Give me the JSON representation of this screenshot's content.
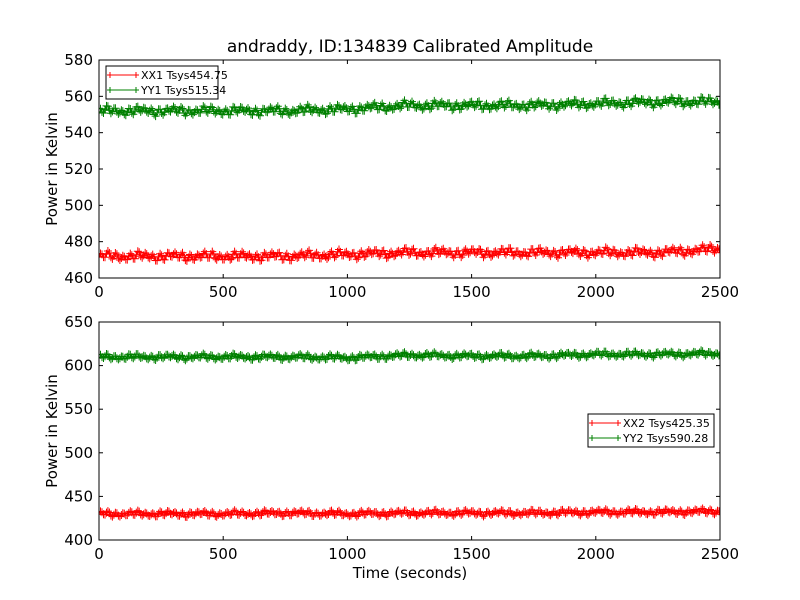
{
  "title": "andraddy, ID:134839 Calibrated Amplitude",
  "xlabel": "Time (seconds)",
  "chart_data": [
    {
      "type": "line",
      "title": "andraddy, ID:134839 Calibrated Amplitude",
      "xlabel": "",
      "ylabel": "Power in Kelvin",
      "xlim": [
        0,
        2500
      ],
      "ylim": [
        460,
        580
      ],
      "xticks": [
        0,
        500,
        1000,
        1500,
        2000,
        2500
      ],
      "yticks": [
        460,
        480,
        500,
        520,
        540,
        560,
        580
      ],
      "grid": false,
      "legend_position": "upper-left",
      "markers": "plus",
      "x": [
        0,
        250,
        500,
        750,
        1000,
        1250,
        1500,
        1750,
        2000,
        2250,
        2500
      ],
      "series": [
        {
          "name": "XX1 Tsys454.75",
          "color": "#ff0000",
          "amplitude": 3,
          "values": [
            472,
            472,
            472,
            472,
            473,
            474,
            474,
            474,
            474,
            474,
            476
          ]
        },
        {
          "name": "YY1 Tsys515.34",
          "color": "#008000",
          "amplitude": 3,
          "values": [
            552,
            552,
            552,
            552,
            553,
            555,
            555,
            555,
            556,
            557,
            557
          ]
        }
      ]
    },
    {
      "type": "line",
      "xlabel": "Time (seconds)",
      "ylabel": "Power in Kelvin",
      "xlim": [
        0,
        2500
      ],
      "ylim": [
        400,
        650
      ],
      "xticks": [
        0,
        500,
        1000,
        1500,
        2000,
        2500
      ],
      "yticks": [
        400,
        450,
        500,
        550,
        600,
        650
      ],
      "grid": false,
      "legend_position": "center-right",
      "markers": "plus",
      "x": [
        0,
        250,
        500,
        750,
        1000,
        1250,
        1500,
        1750,
        2000,
        2250,
        2500
      ],
      "series": [
        {
          "name": "XX2 Tsys425.35",
          "color": "#ff0000",
          "amplitude": 4,
          "values": [
            430,
            430,
            430,
            431,
            430,
            431,
            431,
            431,
            432,
            432,
            433
          ]
        },
        {
          "name": "YY2 Tsys590.28",
          "color": "#008000",
          "amplitude": 4,
          "values": [
            610,
            610,
            610,
            610,
            609,
            612,
            611,
            611,
            613,
            613,
            614
          ]
        }
      ]
    }
  ]
}
